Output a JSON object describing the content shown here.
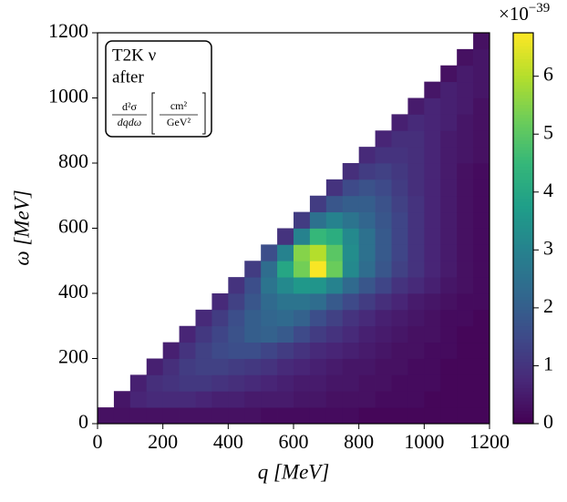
{
  "chart_data": {
    "type": "heatmap",
    "xlabel": "q [MeV]",
    "ylabel": "ω [MeV]",
    "xbins": [
      0,
      50,
      100,
      150,
      200,
      250,
      300,
      350,
      400,
      450,
      500,
      550,
      600,
      650,
      700,
      750,
      800,
      850,
      900,
      950,
      1000,
      1050,
      1100,
      1150,
      1200
    ],
    "ybins": [
      0,
      50,
      100,
      150,
      200,
      250,
      300,
      350,
      400,
      450,
      500,
      550,
      600,
      650,
      700,
      750,
      800,
      850,
      900,
      950,
      1000,
      1050,
      1100,
      1150,
      1200
    ],
    "xlim": [
      0,
      1200
    ],
    "ylim": [
      0,
      1200
    ],
    "xticks": [
      0,
      200,
      400,
      600,
      800,
      1000,
      1200
    ],
    "yticks": [
      0,
      200,
      400,
      600,
      800,
      1000,
      1200
    ],
    "values": [
      [
        0.3,
        0.3,
        0.3,
        0.3,
        0.3,
        0.3,
        0.3,
        0.3,
        0.3,
        0.3,
        0.2,
        0.2,
        0.2,
        0.2,
        0.2,
        0.2,
        0.1,
        0.1,
        0.1,
        0.1,
        0.1,
        0.1,
        0.1,
        0.1
      ],
      [
        null,
        0.4,
        0.7,
        0.8,
        0.8,
        0.8,
        0.7,
        0.6,
        0.6,
        0.5,
        0.5,
        0.5,
        0.4,
        0.4,
        0.3,
        0.3,
        0.3,
        0.2,
        0.2,
        0.2,
        0.1,
        0.1,
        0.1,
        0.1
      ],
      [
        null,
        null,
        0.6,
        0.9,
        1.0,
        1.1,
        1.1,
        1.0,
        0.9,
        0.8,
        0.7,
        0.6,
        0.5,
        0.5,
        0.4,
        0.4,
        0.3,
        0.3,
        0.2,
        0.2,
        0.2,
        0.1,
        0.1,
        0.1
      ],
      [
        null,
        null,
        null,
        0.6,
        0.9,
        1.2,
        1.3,
        1.3,
        1.2,
        1.1,
        1.0,
        0.8,
        0.7,
        0.6,
        0.5,
        0.4,
        0.4,
        0.3,
        0.3,
        0.2,
        0.2,
        0.1,
        0.1,
        0.1
      ],
      [
        null,
        null,
        null,
        null,
        0.6,
        1.0,
        1.3,
        1.5,
        1.6,
        1.6,
        1.4,
        1.2,
        1.0,
        0.8,
        0.7,
        0.6,
        0.5,
        0.4,
        0.3,
        0.3,
        0.2,
        0.2,
        0.1,
        0.1
      ],
      [
        null,
        null,
        null,
        null,
        null,
        0.7,
        1.1,
        1.4,
        1.7,
        2.0,
        2.1,
        1.9,
        1.5,
        1.2,
        1.0,
        0.8,
        0.6,
        0.5,
        0.4,
        0.3,
        0.3,
        0.2,
        0.1,
        0.1
      ],
      [
        null,
        null,
        null,
        null,
        null,
        null,
        0.8,
        1.2,
        1.6,
        2.0,
        2.2,
        2.3,
        2.1,
        1.6,
        1.3,
        1.0,
        0.8,
        0.6,
        0.5,
        0.4,
        0.3,
        0.2,
        0.2,
        0.1
      ],
      [
        null,
        null,
        null,
        null,
        null,
        null,
        null,
        0.8,
        1.3,
        1.8,
        2.3,
        2.6,
        2.6,
        2.4,
        1.9,
        1.5,
        1.2,
        0.9,
        0.7,
        0.5,
        0.4,
        0.3,
        0.2,
        0.2
      ],
      [
        null,
        null,
        null,
        null,
        null,
        null,
        null,
        null,
        1.0,
        1.6,
        2.6,
        3.2,
        3.6,
        3.5,
        3.0,
        2.3,
        1.8,
        1.4,
        1.0,
        0.8,
        0.6,
        0.4,
        0.3,
        0.2
      ],
      [
        null,
        null,
        null,
        null,
        null,
        null,
        null,
        null,
        null,
        1.2,
        2.4,
        4.0,
        5.3,
        6.7,
        5.2,
        3.2,
        2.4,
        1.8,
        1.3,
        1.0,
        0.7,
        0.5,
        0.3,
        0.2
      ],
      [
        null,
        null,
        null,
        null,
        null,
        null,
        null,
        null,
        null,
        null,
        1.6,
        3.0,
        5.5,
        6.0,
        5.0,
        3.3,
        2.5,
        1.9,
        1.4,
        1.0,
        0.7,
        0.5,
        0.3,
        0.2
      ],
      [
        null,
        null,
        null,
        null,
        null,
        null,
        null,
        null,
        null,
        null,
        null,
        1.0,
        3.0,
        4.5,
        4.2,
        3.2,
        2.5,
        1.9,
        1.4,
        1.0,
        0.7,
        0.5,
        0.3,
        0.2
      ],
      [
        null,
        null,
        null,
        null,
        null,
        null,
        null,
        null,
        null,
        null,
        null,
        null,
        1.2,
        2.5,
        3.0,
        2.6,
        2.2,
        1.8,
        1.4,
        1.0,
        0.7,
        0.5,
        0.3,
        0.2
      ],
      [
        null,
        null,
        null,
        null,
        null,
        null,
        null,
        null,
        null,
        null,
        null,
        null,
        null,
        1.2,
        1.8,
        2.0,
        2.0,
        1.7,
        1.3,
        1.0,
        0.7,
        0.5,
        0.3,
        0.2
      ],
      [
        null,
        null,
        null,
        null,
        null,
        null,
        null,
        null,
        null,
        null,
        null,
        null,
        null,
        null,
        1.0,
        1.5,
        1.7,
        1.5,
        1.2,
        0.9,
        0.7,
        0.5,
        0.3,
        0.2
      ],
      [
        null,
        null,
        null,
        null,
        null,
        null,
        null,
        null,
        null,
        null,
        null,
        null,
        null,
        null,
        null,
        0.9,
        1.2,
        1.3,
        1.1,
        0.9,
        0.7,
        0.5,
        0.3,
        0.2
      ],
      [
        null,
        null,
        null,
        null,
        null,
        null,
        null,
        null,
        null,
        null,
        null,
        null,
        null,
        null,
        null,
        null,
        0.8,
        1.0,
        1.0,
        0.9,
        0.7,
        0.5,
        0.4,
        0.3
      ],
      [
        null,
        null,
        null,
        null,
        null,
        null,
        null,
        null,
        null,
        null,
        null,
        null,
        null,
        null,
        null,
        null,
        null,
        0.7,
        0.9,
        0.9,
        0.7,
        0.5,
        0.4,
        0.3
      ],
      [
        null,
        null,
        null,
        null,
        null,
        null,
        null,
        null,
        null,
        null,
        null,
        null,
        null,
        null,
        null,
        null,
        null,
        null,
        0.6,
        0.8,
        0.7,
        0.6,
        0.4,
        0.3
      ],
      [
        null,
        null,
        null,
        null,
        null,
        null,
        null,
        null,
        null,
        null,
        null,
        null,
        null,
        null,
        null,
        null,
        null,
        null,
        null,
        0.5,
        0.7,
        0.6,
        0.5,
        0.3
      ],
      [
        null,
        null,
        null,
        null,
        null,
        null,
        null,
        null,
        null,
        null,
        null,
        null,
        null,
        null,
        null,
        null,
        null,
        null,
        null,
        null,
        0.4,
        0.6,
        0.5,
        0.4
      ],
      [
        null,
        null,
        null,
        null,
        null,
        null,
        null,
        null,
        null,
        null,
        null,
        null,
        null,
        null,
        null,
        null,
        null,
        null,
        null,
        null,
        null,
        0.3,
        0.5,
        0.4
      ],
      [
        null,
        null,
        null,
        null,
        null,
        null,
        null,
        null,
        null,
        null,
        null,
        null,
        null,
        null,
        null,
        null,
        null,
        null,
        null,
        null,
        null,
        null,
        0.3,
        0.4
      ],
      [
        null,
        null,
        null,
        null,
        null,
        null,
        null,
        null,
        null,
        null,
        null,
        null,
        null,
        null,
        null,
        null,
        null,
        null,
        null,
        null,
        null,
        null,
        null,
        0.3
      ]
    ],
    "colormap": "viridis",
    "zlim": [
      0,
      6.75
    ],
    "zticks": [
      0,
      1,
      2,
      3,
      4,
      5,
      6
    ],
    "colorbar_scale": {
      "base": "×10",
      "exponent": "−39"
    },
    "annotation": {
      "line1": "T2K ν",
      "line2": "after",
      "numerator": "d²σ",
      "denominator": "dqdω",
      "unit_numerator": "cm²",
      "unit_denominator": "GeV²"
    }
  }
}
